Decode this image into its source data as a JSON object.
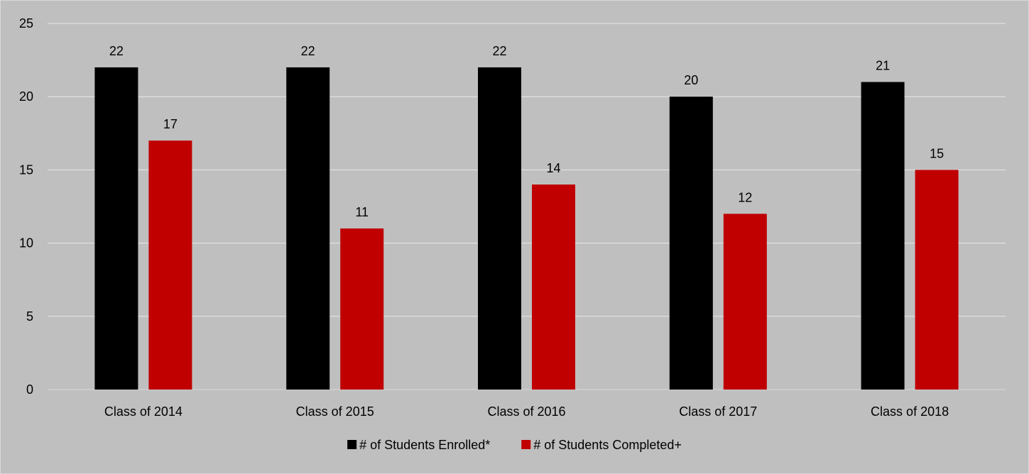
{
  "chart_data": {
    "type": "bar",
    "categories": [
      "Class of 2014",
      "Class of 2015",
      "Class of 2016",
      "Class of 2017",
      "Class of 2018"
    ],
    "series": [
      {
        "name": "# of Students Enrolled*",
        "color": "#000000",
        "values": [
          22,
          22,
          22,
          20,
          21
        ]
      },
      {
        "name": "# of Students Completed+",
        "color": "#c00000",
        "values": [
          17,
          11,
          14,
          12,
          15
        ]
      }
    ],
    "ylim": [
      0,
      25
    ],
    "yticks": [
      0,
      5,
      10,
      15,
      20,
      25
    ],
    "grid": true,
    "legend_position": "bottom",
    "background": "#bfbfbf",
    "gridline_color": "#e8e8e8"
  }
}
